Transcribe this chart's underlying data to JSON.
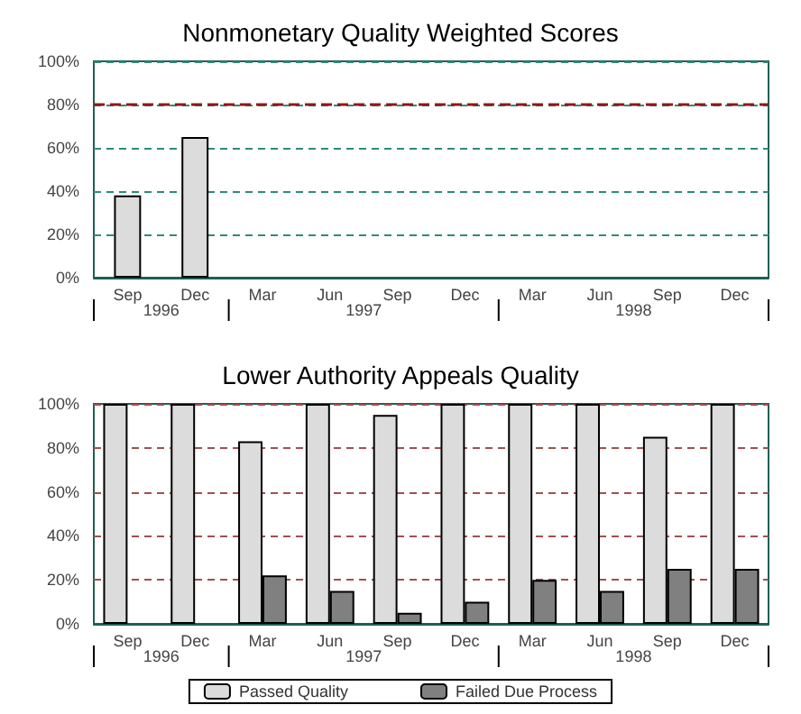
{
  "chart_data": [
    {
      "type": "bar",
      "title": "Nonmonetary Quality Weighted Scores",
      "categories": [
        "Sep",
        "Dec",
        "Mar",
        "Jun",
        "Sep",
        "Dec",
        "Mar",
        "Jun",
        "Sep",
        "Dec"
      ],
      "values": [
        38,
        65,
        null,
        null,
        null,
        null,
        null,
        null,
        null,
        null
      ],
      "color": "#dcdcdc",
      "ylim": [
        0,
        100
      ],
      "yticks": [
        {
          "value": 0,
          "label": "0%"
        },
        {
          "value": 20,
          "label": "20%"
        },
        {
          "value": 40,
          "label": "40%"
        },
        {
          "value": 60,
          "label": "60%"
        },
        {
          "value": 80,
          "label": "80%"
        },
        {
          "value": 100,
          "label": "100%"
        }
      ],
      "grid": "y",
      "legend": false,
      "ref_lines": [
        {
          "axis": "y",
          "value": 80,
          "color": "#8b1a1a",
          "line_style": "dashed"
        }
      ],
      "annotations": [
        "1996",
        "1997",
        "1998"
      ]
    },
    {
      "type": "bar",
      "title": "Lower Authority Appeals Quality",
      "categories": [
        "Sep",
        "Dec",
        "Mar",
        "Jun",
        "Sep",
        "Dec",
        "Mar",
        "Jun",
        "Sep",
        "Dec"
      ],
      "series": [
        {
          "name": "Passed Quality",
          "color": "#dcdcdc",
          "values": [
            100,
            100,
            83,
            100,
            95,
            100,
            100,
            100,
            85,
            100
          ]
        },
        {
          "name": "Failed Due Process",
          "color": "#808080",
          "values": [
            null,
            null,
            22,
            15,
            5,
            10,
            20,
            15,
            25,
            25
          ]
        }
      ],
      "ylim": [
        0,
        100
      ],
      "yticks": [
        {
          "value": 0,
          "label": "0%"
        },
        {
          "value": 20,
          "label": "20%"
        },
        {
          "value": 40,
          "label": "40%"
        },
        {
          "value": 60,
          "label": "60%"
        },
        {
          "value": 80,
          "label": "80%"
        },
        {
          "value": 100,
          "label": "100%"
        }
      ],
      "grid": "y",
      "legend": "bottom",
      "annotations": [
        "1996",
        "1997",
        "1998"
      ]
    }
  ]
}
